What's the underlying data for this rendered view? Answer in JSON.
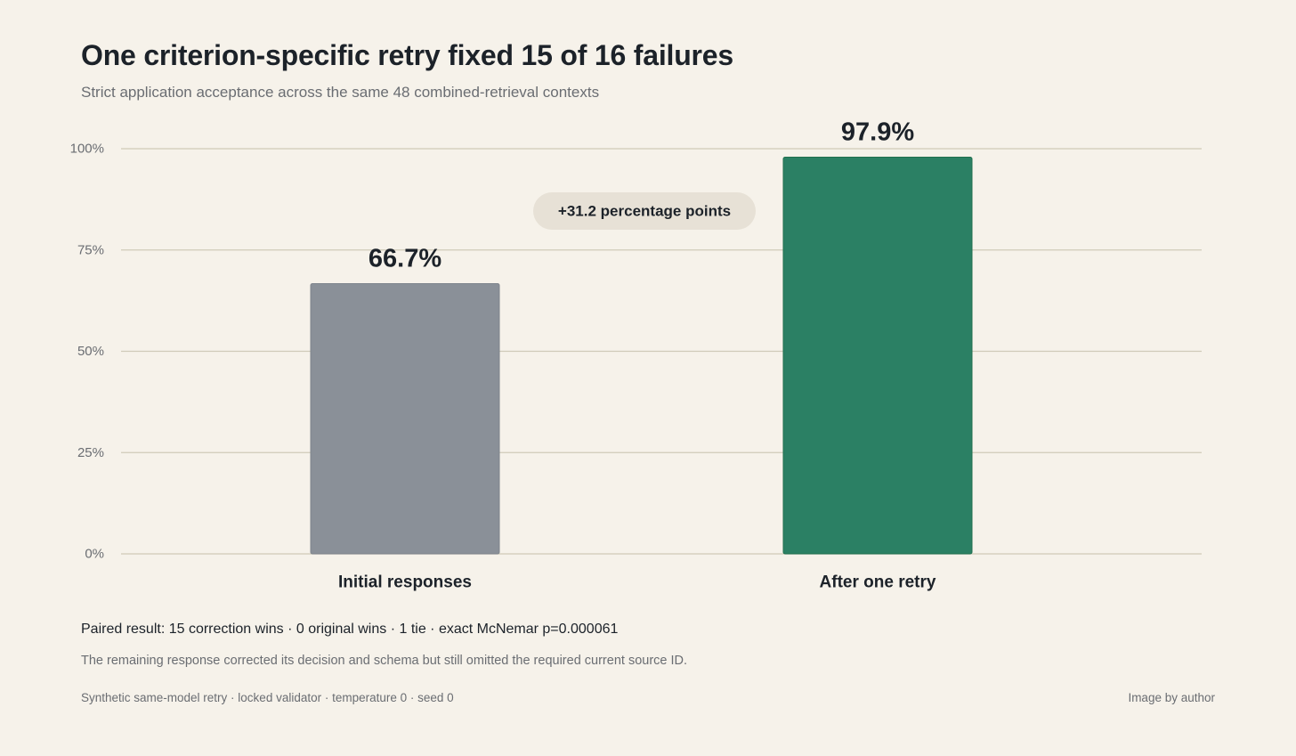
{
  "chart_data": {
    "type": "bar",
    "title": "One criterion-specific retry fixed 15 of 16 failures",
    "subtitle": "Strict application acceptance across the same 48 combined-retrieval contexts",
    "categories": [
      "Initial responses",
      "After one retry"
    ],
    "values": [
      66.7,
      97.9
    ],
    "value_labels": [
      "66.7%",
      "97.9%"
    ],
    "bar_colors": [
      "#8a9098",
      "#2b8064"
    ],
    "ylim": [
      0,
      100
    ],
    "yticks": [
      0,
      25,
      50,
      75,
      100
    ],
    "ytick_labels": [
      "0%",
      "25%",
      "50%",
      "75%",
      "100%"
    ],
    "xlabel": "",
    "ylabel": "",
    "grid": true,
    "annotation": "+31.2 percentage points"
  },
  "notes": {
    "paired_result": "Paired result: 15 correction wins · 0 original wins · 1 tie · exact McNemar p=0.000061",
    "remaining": "The remaining response corrected its decision and schema but still omitted the required current source ID."
  },
  "footer": {
    "left": "Synthetic same-model retry · locked validator · temperature 0 · seed 0",
    "right": "Image by author"
  },
  "colors": {
    "background": "#f6f2ea",
    "gridline": "#cfcab8",
    "callout": "#e7e1d6"
  }
}
